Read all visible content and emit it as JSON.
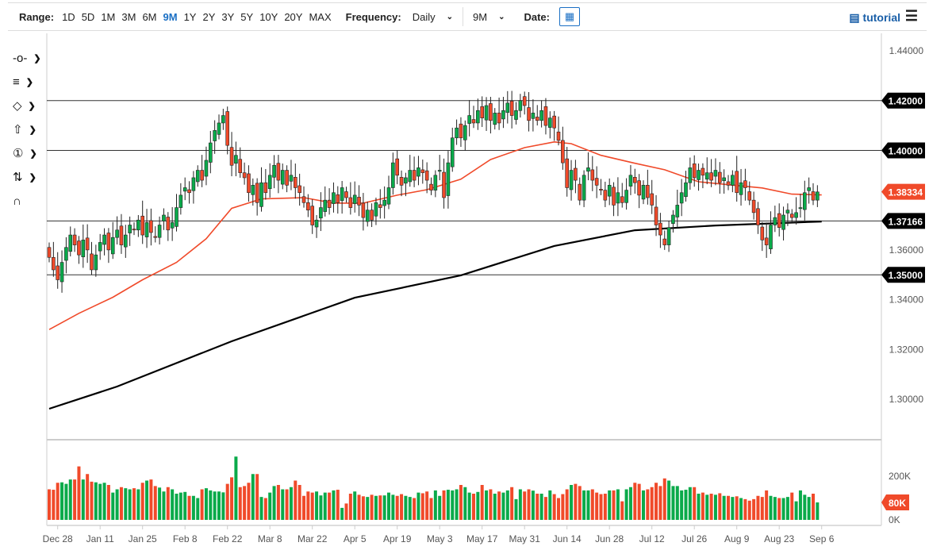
{
  "toolbar": {
    "range_label": "Range:",
    "ranges": [
      "1D",
      "5D",
      "1M",
      "3M",
      "6M",
      "9M",
      "1Y",
      "2Y",
      "3Y",
      "5Y",
      "10Y",
      "20Y",
      "MAX"
    ],
    "active_range": "9M",
    "frequency_label": "Frequency:",
    "frequency": "Daily",
    "period": "9M",
    "date_label": "Date:",
    "tutorial": "tutorial"
  },
  "colors": {
    "up": "#0aaa4a",
    "down": "#f04a2a",
    "ma50": "#f04a2a",
    "ma200": "#000000",
    "accent": "#1a6fc4"
  },
  "side_tools": [
    "line-tool-icon",
    "fib-tool-icon",
    "shape-tool-icon",
    "arrow-tool-icon",
    "label-tool-icon",
    "measure-tool-icon",
    "magnet-icon"
  ],
  "chart_data": {
    "type": "candlestick",
    "x_tick_labels": [
      "Dec 28",
      "Jan 11",
      "Jan 25",
      "Feb 8",
      "Feb 22",
      "Mar 8",
      "Mar 22",
      "Apr 5",
      "Apr 19",
      "May 3",
      "May 17",
      "May 31",
      "Jun 14",
      "Jun 28",
      "Jul 12",
      "Jul 26",
      "Aug 9",
      "Aug 23",
      "Sep 6"
    ],
    "x_tick_index": [
      2,
      12,
      22,
      32,
      42,
      52,
      62,
      72,
      82,
      92,
      102,
      112,
      122,
      132,
      142,
      152,
      162,
      172,
      182
    ],
    "y_tick_labels": [
      "1.44000",
      "1.36000",
      "1.34000",
      "1.32000",
      "1.30000"
    ],
    "y_ticks": [
      1.44,
      1.36,
      1.34,
      1.32,
      1.3
    ],
    "ylim": [
      1.2875,
      1.4475
    ],
    "levels": [
      {
        "value": 1.42,
        "label": "1.42000"
      },
      {
        "value": 1.4,
        "label": "1.40000"
      },
      {
        "value": 1.37166,
        "label": "1.37166"
      },
      {
        "value": 1.35,
        "label": "1.35000"
      }
    ],
    "last_price": {
      "value": 1.38334,
      "label": "1.38334"
    },
    "close": [
      1.357,
      1.352,
      1.348,
      1.355,
      1.361,
      1.366,
      1.362,
      1.358,
      1.364,
      1.36,
      1.352,
      1.358,
      1.363,
      1.366,
      1.36,
      1.365,
      1.368,
      1.362,
      1.366,
      1.37,
      1.368,
      1.372,
      1.366,
      1.371,
      1.367,
      1.365,
      1.37,
      1.374,
      1.368,
      1.371,
      1.377,
      1.382,
      1.385,
      1.383,
      1.389,
      1.392,
      1.388,
      1.396,
      1.403,
      1.408,
      1.411,
      1.414,
      1.402,
      1.394,
      1.398,
      1.391,
      1.389,
      1.383,
      1.386,
      1.379,
      1.387,
      1.383,
      1.39,
      1.394,
      1.388,
      1.392,
      1.386,
      1.39,
      1.385,
      1.383,
      1.379,
      1.376,
      1.37,
      1.372,
      1.377,
      1.38,
      1.377,
      1.383,
      1.379,
      1.385,
      1.381,
      1.377,
      1.382,
      1.378,
      1.373,
      1.376,
      1.372,
      1.379,
      1.377,
      1.38,
      1.385,
      1.395,
      1.39,
      1.386,
      1.389,
      1.392,
      1.388,
      1.393,
      1.391,
      1.388,
      1.384,
      1.39,
      1.392,
      1.381,
      1.395,
      1.405,
      1.409,
      1.405,
      1.41,
      1.414,
      1.411,
      1.416,
      1.413,
      1.418,
      1.412,
      1.415,
      1.411,
      1.416,
      1.419,
      1.414,
      1.416,
      1.42,
      1.418,
      1.412,
      1.415,
      1.412,
      1.416,
      1.41,
      1.413,
      1.409,
      1.404,
      1.395,
      1.385,
      1.392,
      1.388,
      1.38,
      1.39,
      1.393,
      1.388,
      1.386,
      1.384,
      1.38,
      1.386,
      1.378,
      1.383,
      1.379,
      1.384,
      1.39,
      1.387,
      1.382,
      1.386,
      1.381,
      1.378,
      1.37,
      1.366,
      1.362,
      1.369,
      1.374,
      1.378,
      1.383,
      1.387,
      1.393,
      1.389,
      1.392,
      1.39,
      1.391,
      1.388,
      1.392,
      1.387,
      1.389,
      1.386,
      1.39,
      1.383,
      1.387,
      1.385,
      1.38,
      1.375,
      1.37,
      1.364,
      1.362,
      1.37,
      1.373,
      1.369,
      1.374,
      1.376,
      1.373,
      1.375,
      1.377,
      1.383,
      1.385,
      1.38,
      1.3833
    ],
    "ma50": [
      [
        0,
        1.328
      ],
      [
        7,
        1.3345
      ],
      [
        15,
        1.341
      ],
      [
        22,
        1.348
      ],
      [
        30,
        1.355
      ],
      [
        37,
        1.3645
      ],
      [
        43,
        1.3767
      ],
      [
        50,
        1.3805
      ],
      [
        60,
        1.381
      ],
      [
        67,
        1.3788
      ],
      [
        74,
        1.3788
      ],
      [
        82,
        1.382
      ],
      [
        89,
        1.3842
      ],
      [
        97,
        1.3884
      ],
      [
        104,
        1.3963
      ],
      [
        112,
        1.4011
      ],
      [
        119,
        1.4034
      ],
      [
        123,
        1.4027
      ],
      [
        130,
        1.398
      ],
      [
        138,
        1.3948
      ],
      [
        145,
        1.3922
      ],
      [
        153,
        1.3874
      ],
      [
        160,
        1.3862
      ],
      [
        168,
        1.3849
      ],
      [
        175,
        1.3824
      ],
      [
        182,
        1.3821
      ]
    ],
    "ma200": [
      [
        0,
        1.2962
      ],
      [
        16,
        1.3051
      ],
      [
        43,
        1.3233
      ],
      [
        72,
        1.3408
      ],
      [
        97,
        1.3498
      ],
      [
        119,
        1.3616
      ],
      [
        138,
        1.3679
      ],
      [
        157,
        1.3698
      ],
      [
        182,
        1.3714
      ]
    ],
    "volume": [
      140,
      138,
      170,
      172,
      165,
      185,
      185,
      245,
      185,
      210,
      175,
      172,
      165,
      170,
      160,
      125,
      140,
      150,
      145,
      140,
      145,
      140,
      170,
      180,
      185,
      155,
      148,
      130,
      150,
      140,
      120,
      125,
      128,
      110,
      110,
      100,
      140,
      145,
      135,
      130,
      130,
      126,
      165,
      195,
      290,
      150,
      155,
      170,
      210,
      210,
      105,
      100,
      125,
      155,
      160,
      140,
      140,
      150,
      180,
      160,
      110,
      130,
      125,
      130,
      112,
      125,
      125,
      135,
      138,
      55,
      75,
      120,
      130,
      115,
      108,
      105,
      115,
      110,
      112,
      112,
      125,
      115,
      110,
      118,
      110,
      105,
      100,
      125,
      122,
      130,
      100,
      135,
      110,
      135,
      138,
      135,
      140,
      160,
      150,
      125,
      120,
      128,
      160,
      135,
      140,
      120,
      130,
      125,
      135,
      150,
      95,
      140,
      130,
      140,
      134,
      120,
      120,
      105,
      135,
      118,
      100,
      118,
      140,
      160,
      165,
      155,
      135,
      135,
      140,
      125,
      118,
      120,
      135,
      135,
      140,
      85,
      140,
      150,
      170,
      165,
      135,
      140,
      150,
      170,
      155,
      190,
      180,
      155,
      155,
      135,
      138,
      150,
      150,
      120,
      125,
      115,
      120,
      115,
      122,
      110,
      110,
      105,
      108,
      100,
      95,
      88,
      95,
      110,
      105,
      135,
      110,
      105,
      100,
      100,
      105,
      125,
      85,
      135,
      115,
      105,
      120,
      80
    ],
    "volume_ticks": [
      {
        "value": 200,
        "label": "200K"
      },
      {
        "value": 0,
        "label": "0K"
      }
    ],
    "last_volume": {
      "value": 80,
      "label": "80K"
    }
  }
}
